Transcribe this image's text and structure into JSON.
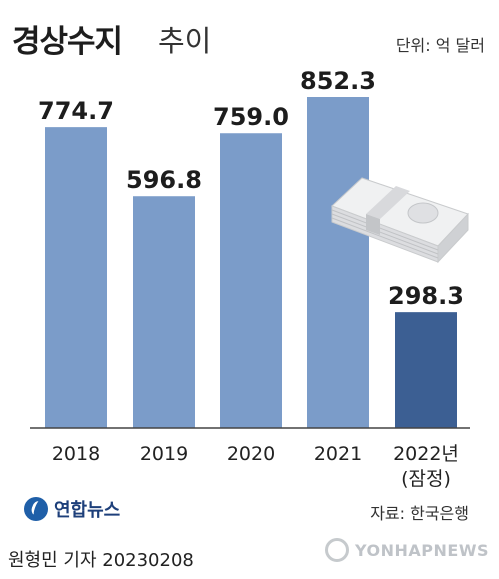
{
  "chart_data": {
    "type": "bar",
    "title": "경상수지",
    "title_suffix": "추이",
    "unit": "단위: 억 달러",
    "categories": [
      "2018",
      "2019",
      "2020",
      "2021",
      "2022년"
    ],
    "category_notes": [
      "",
      "",
      "",
      "",
      "(잠정)"
    ],
    "values": [
      774.7,
      596.8,
      759.0,
      852.3,
      298.3
    ],
    "value_labels": [
      "774.7",
      "596.8",
      "759.0",
      "852.3",
      "298.3"
    ],
    "colors": [
      "#7b9cc9",
      "#7b9cc9",
      "#7b9cc9",
      "#7b9cc9",
      "#3c5f93"
    ],
    "ylim": [
      0,
      852.3
    ]
  },
  "footer": {
    "logo": "연합뉴스",
    "source": "자료: 한국은행",
    "author": "원형민 기자  20230208",
    "watermark": "YONHAPNEWS"
  }
}
